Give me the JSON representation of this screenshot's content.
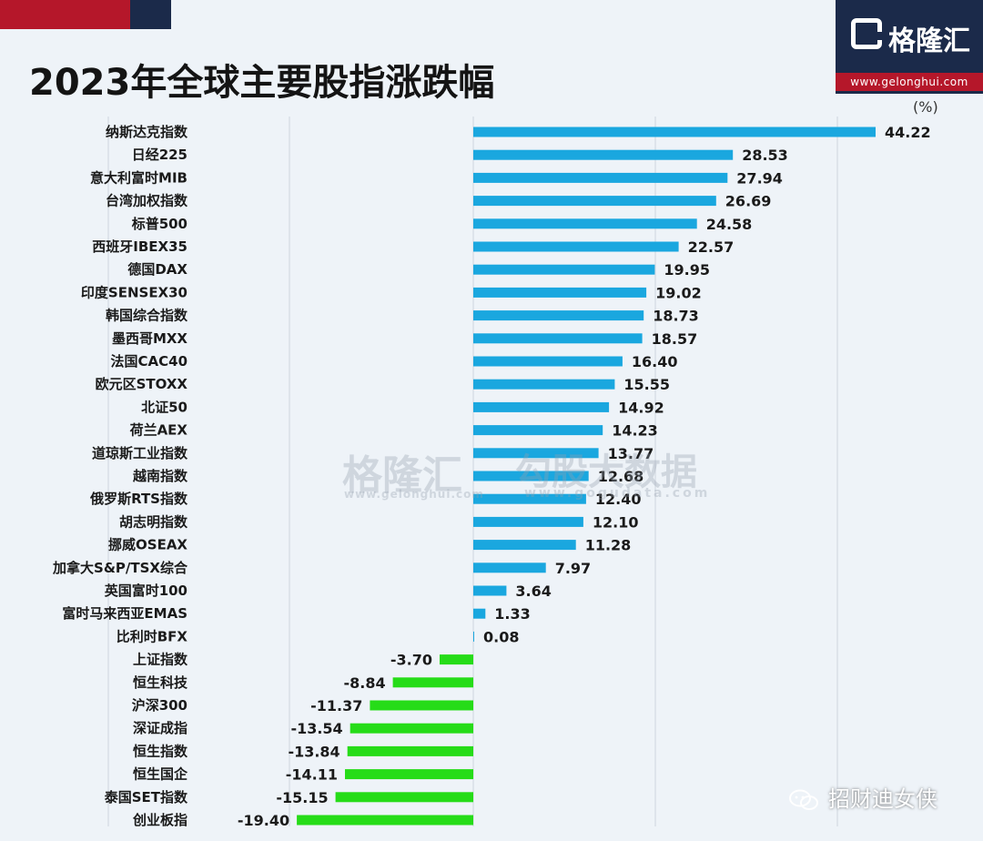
{
  "title": "2023年全球主要股指涨跌幅",
  "brand": {
    "name": "格隆汇",
    "url": "www.gelonghui.com"
  },
  "watermark": {
    "brand": "格隆汇",
    "brand_url": "www.gelonghui.com",
    "partner": "勾股大数据",
    "partner_url": "www.gogudata.com"
  },
  "wechat_account": "招财迪女侠",
  "colors": {
    "positive": "#1aa7df",
    "negative": "#26dc18",
    "title": "#141414",
    "brand_bg": "#1b2a4a",
    "brand_red": "#b5172a"
  },
  "icons": [
    "brand-logo-icon",
    "wechat-icon"
  ],
  "chart_data": {
    "type": "bar",
    "orientation": "horizontal",
    "unit": "(%)",
    "grid": true,
    "categories": [
      "纳斯达克指数",
      "日经225",
      "意大利富时MIB",
      "台湾加权指数",
      "标普500",
      "西班牙IBEX35",
      "德国DAX",
      "印度SENSEX30",
      "韩国综合指数",
      "墨西哥MXX",
      "法国CAC40",
      "欧元区STOXX",
      "北证50",
      "荷兰AEX",
      "道琼斯工业指数",
      "越南指数",
      "俄罗斯RTS指数",
      "胡志明指数",
      "挪威OSEAX",
      "加拿大S&P/TSX综合",
      "英国富时100",
      "富时马来西亚EMAS",
      "比利时BFX",
      "上证指数",
      "恒生科技",
      "沪深300",
      "深证成指",
      "恒生指数",
      "恒生国企",
      "泰国SET指数",
      "创业板指"
    ],
    "values": [
      44.22,
      28.53,
      27.94,
      26.69,
      24.58,
      22.57,
      19.95,
      19.02,
      18.73,
      18.57,
      16.4,
      15.55,
      14.92,
      14.23,
      13.77,
      12.68,
      12.4,
      12.1,
      11.28,
      7.97,
      3.64,
      1.33,
      0.08,
      -3.7,
      -8.84,
      -11.37,
      -13.54,
      -13.84,
      -14.11,
      -15.15,
      -19.4
    ],
    "labels": [
      "44.22",
      "28.53",
      "27.94",
      "26.69",
      "24.58",
      "22.57",
      "19.95",
      "19.02",
      "18.73",
      "18.57",
      "16.40",
      "15.55",
      "14.92",
      "14.23",
      "13.77",
      "12.68",
      "12.40",
      "12.10",
      "11.28",
      "7.97",
      "3.64",
      "1.33",
      "0.08",
      "-3.70",
      "-8.84",
      "-11.37",
      "-13.54",
      "-13.84",
      "-14.11",
      "-15.15",
      "-19.40"
    ],
    "xlim": [
      -30,
      50
    ]
  }
}
